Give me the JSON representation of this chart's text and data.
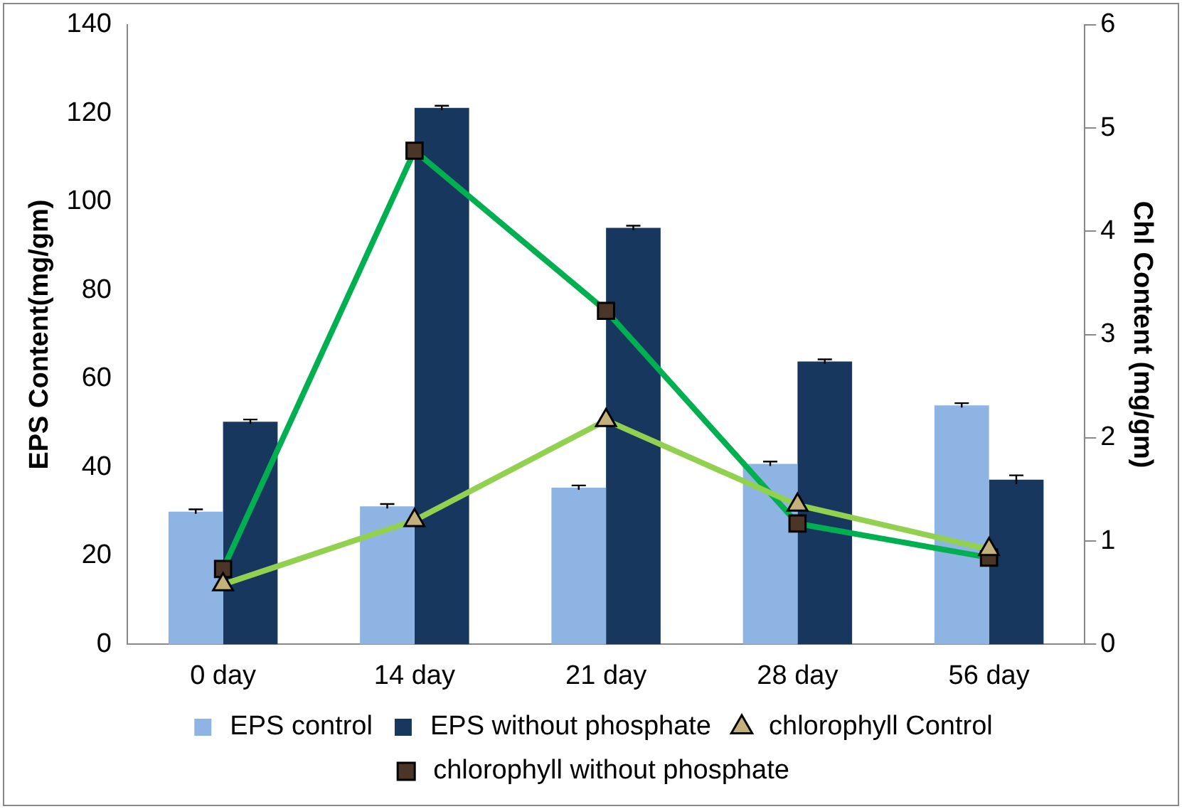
{
  "chart_data": {
    "type": "bar",
    "categories": [
      "0 day",
      "14 day",
      "21 day",
      "28 day",
      "56 day"
    ],
    "ylabel": "EPS Content(mg/gm)",
    "y2label": "Chl Content (mg/gm)",
    "ylim": [
      0,
      140
    ],
    "yticks": [
      0,
      20,
      40,
      60,
      80,
      100,
      120,
      140
    ],
    "y2lim": [
      0,
      6
    ],
    "y2ticks": [
      0,
      1,
      2,
      3,
      4,
      5,
      6
    ],
    "series": [
      {
        "name": "EPS control",
        "color": "#8eb4e3",
        "values": [
          30,
          31.2,
          35.4,
          40.8,
          54
        ],
        "errors": [
          0.5,
          0.5,
          0.5,
          0.5,
          0.5
        ]
      },
      {
        "name": "EPS without phosphate",
        "color": "#17375e",
        "values": [
          50.3,
          121.2,
          94.1,
          63.9,
          37.2
        ],
        "errors": [
          0.5,
          0.5,
          0.5,
          0.5,
          1
        ]
      },
      {
        "name": "chlorophyll Control",
        "type": "line",
        "axis": "y2",
        "color": "#92d050",
        "marker": "triangle",
        "values": [
          0.58,
          1.2,
          2.17,
          1.35,
          0.92
        ]
      },
      {
        "name": "chlorophyll without phosphate",
        "type": "line",
        "axis": "y2",
        "color": "#00b050",
        "marker": "square",
        "values": [
          0.73,
          4.78,
          3.23,
          1.17,
          0.84
        ]
      }
    ],
    "grid": false,
    "legend": "bottom"
  }
}
